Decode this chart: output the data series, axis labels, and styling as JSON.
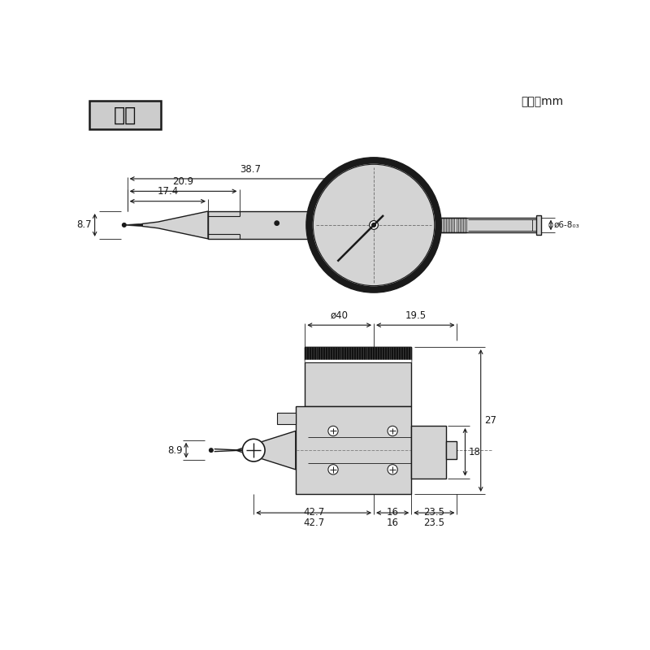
{
  "bg_color": "#ffffff",
  "line_color": "#1a1a1a",
  "fill_color": "#d4d4d4",
  "dark_fill": "#1a1a1a",
  "label_box_text": "縦形",
  "unit_text": "単位：mm",
  "dim_20_9": "20.9",
  "dim_38_7": "38.7",
  "dim_17_4": "17.4",
  "dim_8_7": "8.7",
  "dim_phi6": "ø6-8₀₃",
  "dim_phi40": "ø40",
  "dim_19_5": "19.5",
  "dim_8_9": "8.9",
  "dim_27": "27",
  "dim_18": "18",
  "dim_42_7": "42.7",
  "dim_16": "16",
  "dim_23_5": "23.5"
}
